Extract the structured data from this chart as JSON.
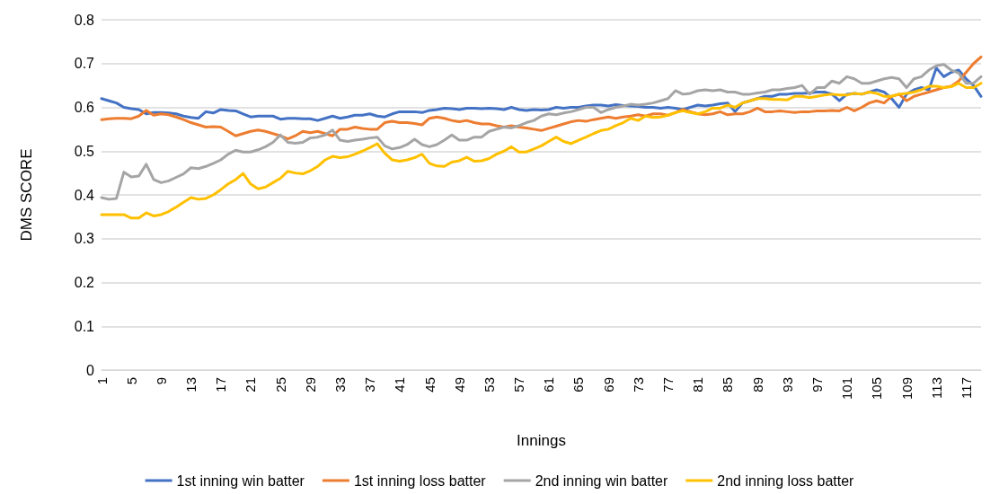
{
  "chart_data": {
    "type": "line",
    "xlabel": "Innings",
    "ylabel": "DMS SCORE",
    "categories": [
      "1",
      null,
      null,
      null,
      "5",
      null,
      null,
      null,
      "9",
      null,
      null,
      null,
      "13",
      null,
      null,
      null,
      "17",
      null,
      null,
      null,
      "21",
      null,
      null,
      null,
      "25",
      null,
      null,
      null,
      "29",
      null,
      null,
      null,
      "33",
      null,
      null,
      null,
      "37",
      null,
      null,
      null,
      "41",
      null,
      null,
      null,
      "45",
      null,
      null,
      null,
      "49",
      null,
      null,
      null,
      "53",
      null,
      null,
      null,
      "57",
      null,
      null,
      null,
      "61",
      null,
      null,
      null,
      "65",
      null,
      null,
      null,
      "69",
      null,
      null,
      null,
      "73",
      null,
      null,
      null,
      "77",
      null,
      null,
      null,
      "81",
      null,
      null,
      null,
      "85",
      null,
      null,
      null,
      "89",
      null,
      null,
      null,
      "93",
      null,
      null,
      null,
      "97",
      null,
      null,
      null,
      "101",
      null,
      null,
      null,
      "105",
      null,
      null,
      null,
      "109",
      null,
      null,
      null,
      "113",
      null,
      null,
      null,
      "117",
      null,
      null
    ],
    "series": [
      {
        "name": "1st inning win batter",
        "color": "#4472c4",
        "values": [
          0.62,
          0.615,
          0.61,
          0.6,
          0.597,
          0.595,
          0.585,
          0.588,
          0.588,
          0.587,
          0.585,
          0.58,
          0.577,
          0.575,
          0.59,
          0.587,
          0.595,
          0.593,
          0.592,
          0.585,
          0.578,
          0.58,
          0.58,
          0.58,
          0.573,
          0.575,
          0.575,
          0.574,
          0.574,
          0.57,
          0.575,
          0.58,
          0.575,
          0.578,
          0.582,
          0.582,
          0.585,
          0.58,
          0.578,
          0.585,
          0.59,
          0.59,
          0.59,
          0.588,
          0.593,
          0.595,
          0.598,
          0.597,
          0.595,
          0.598,
          0.598,
          0.597,
          0.598,
          0.597,
          0.595,
          0.6,
          0.595,
          0.593,
          0.595,
          0.594,
          0.595,
          0.6,
          0.598,
          0.6,
          0.6,
          0.603,
          0.605,
          0.605,
          0.603,
          0.606,
          0.604,
          0.603,
          0.602,
          0.6,
          0.6,
          0.598,
          0.6,
          0.598,
          0.595,
          0.6,
          0.605,
          0.603,
          0.605,
          0.608,
          0.61,
          0.59,
          0.61,
          0.615,
          0.62,
          0.625,
          0.625,
          0.63,
          0.63,
          0.632,
          0.632,
          0.633,
          0.635,
          0.635,
          0.63,
          0.615,
          0.63,
          0.632,
          0.63,
          0.635,
          0.64,
          0.635,
          0.62,
          0.6,
          0.63,
          0.64,
          0.645,
          0.64,
          0.69,
          0.67,
          0.68,
          0.685,
          0.665,
          0.65,
          0.625
        ]
      },
      {
        "name": "1st inning loss batter",
        "color": "#ed7d31",
        "values": [
          0.572,
          0.574,
          0.575,
          0.575,
          0.574,
          0.58,
          0.593,
          0.582,
          0.585,
          0.583,
          0.578,
          0.572,
          0.565,
          0.56,
          0.555,
          0.556,
          0.555,
          0.545,
          0.535,
          0.54,
          0.545,
          0.548,
          0.545,
          0.54,
          0.535,
          0.528,
          0.535,
          0.545,
          0.542,
          0.545,
          0.54,
          0.535,
          0.55,
          0.55,
          0.555,
          0.552,
          0.55,
          0.55,
          0.565,
          0.568,
          0.565,
          0.565,
          0.563,
          0.56,
          0.575,
          0.578,
          0.575,
          0.57,
          0.567,
          0.57,
          0.565,
          0.562,
          0.562,
          0.558,
          0.555,
          0.558,
          0.555,
          0.553,
          0.55,
          0.547,
          0.552,
          0.557,
          0.562,
          0.567,
          0.57,
          0.568,
          0.572,
          0.575,
          0.578,
          0.575,
          0.578,
          0.58,
          0.583,
          0.58,
          0.585,
          0.585,
          0.582,
          0.588,
          0.595,
          0.59,
          0.585,
          0.583,
          0.585,
          0.59,
          0.583,
          0.585,
          0.585,
          0.59,
          0.598,
          0.59,
          0.59,
          0.592,
          0.59,
          0.588,
          0.59,
          0.59,
          0.592,
          0.592,
          0.593,
          0.592,
          0.6,
          0.592,
          0.6,
          0.61,
          0.615,
          0.61,
          0.625,
          0.63,
          0.615,
          0.625,
          0.63,
          0.635,
          0.64,
          0.645,
          0.648,
          0.66,
          0.68,
          0.7,
          0.715
        ]
      },
      {
        "name": "2nd inning win batter",
        "color": "#a5a5a5",
        "values": [
          0.394,
          0.39,
          0.392,
          0.452,
          0.441,
          0.443,
          0.47,
          0.435,
          0.428,
          0.432,
          0.44,
          0.448,
          0.462,
          0.46,
          0.465,
          0.472,
          0.48,
          0.493,
          0.502,
          0.498,
          0.498,
          0.503,
          0.51,
          0.52,
          0.537,
          0.52,
          0.518,
          0.52,
          0.53,
          0.532,
          0.537,
          0.548,
          0.525,
          0.522,
          0.525,
          0.527,
          0.53,
          0.532,
          0.512,
          0.505,
          0.508,
          0.515,
          0.527,
          0.515,
          0.51,
          0.515,
          0.525,
          0.537,
          0.525,
          0.525,
          0.532,
          0.532,
          0.545,
          0.55,
          0.555,
          0.553,
          0.558,
          0.565,
          0.57,
          0.58,
          0.585,
          0.583,
          0.587,
          0.59,
          0.595,
          0.6,
          0.6,
          0.588,
          0.595,
          0.6,
          0.603,
          0.607,
          0.605,
          0.607,
          0.61,
          0.615,
          0.62,
          0.638,
          0.63,
          0.632,
          0.638,
          0.64,
          0.638,
          0.64,
          0.635,
          0.635,
          0.63,
          0.63,
          0.633,
          0.635,
          0.64,
          0.64,
          0.643,
          0.645,
          0.65,
          0.63,
          0.645,
          0.645,
          0.66,
          0.655,
          0.67,
          0.665,
          0.655,
          0.655,
          0.66,
          0.665,
          0.668,
          0.665,
          0.645,
          0.665,
          0.67,
          0.685,
          0.695,
          0.698,
          0.685,
          0.678,
          0.655,
          0.655,
          0.67
        ]
      },
      {
        "name": "2nd inning loss batter",
        "color": "#ffc000",
        "values": [
          0.355,
          0.355,
          0.355,
          0.355,
          0.347,
          0.347,
          0.359,
          0.352,
          0.355,
          0.362,
          0.372,
          0.383,
          0.394,
          0.39,
          0.392,
          0.4,
          0.412,
          0.425,
          0.435,
          0.449,
          0.425,
          0.414,
          0.418,
          0.428,
          0.438,
          0.454,
          0.45,
          0.448,
          0.455,
          0.465,
          0.48,
          0.488,
          0.485,
          0.487,
          0.493,
          0.5,
          0.508,
          0.517,
          0.495,
          0.48,
          0.477,
          0.48,
          0.485,
          0.493,
          0.472,
          0.466,
          0.465,
          0.475,
          0.478,
          0.486,
          0.477,
          0.478,
          0.483,
          0.493,
          0.5,
          0.51,
          0.498,
          0.498,
          0.505,
          0.512,
          0.522,
          0.532,
          0.522,
          0.517,
          0.525,
          0.532,
          0.54,
          0.547,
          0.55,
          0.558,
          0.565,
          0.575,
          0.57,
          0.58,
          0.577,
          0.578,
          0.582,
          0.588,
          0.592,
          0.588,
          0.585,
          0.59,
          0.598,
          0.598,
          0.605,
          0.6,
          0.61,
          0.615,
          0.62,
          0.62,
          0.618,
          0.618,
          0.617,
          0.625,
          0.625,
          0.622,
          0.625,
          0.628,
          0.63,
          0.628,
          0.628,
          0.632,
          0.63,
          0.635,
          0.632,
          0.625,
          0.625,
          0.63,
          0.632,
          0.635,
          0.64,
          0.648,
          0.648,
          0.645,
          0.647,
          0.655,
          0.645,
          0.645,
          0.655
        ]
      }
    ],
    "ylim": [
      0,
      0.8
    ],
    "yticks": [
      0,
      0.1,
      0.2,
      0.3,
      0.4,
      0.5,
      0.6,
      0.7,
      0.8
    ],
    "grid": "y",
    "legend": "bottom",
    "marker": "none",
    "line_style": "solid"
  }
}
